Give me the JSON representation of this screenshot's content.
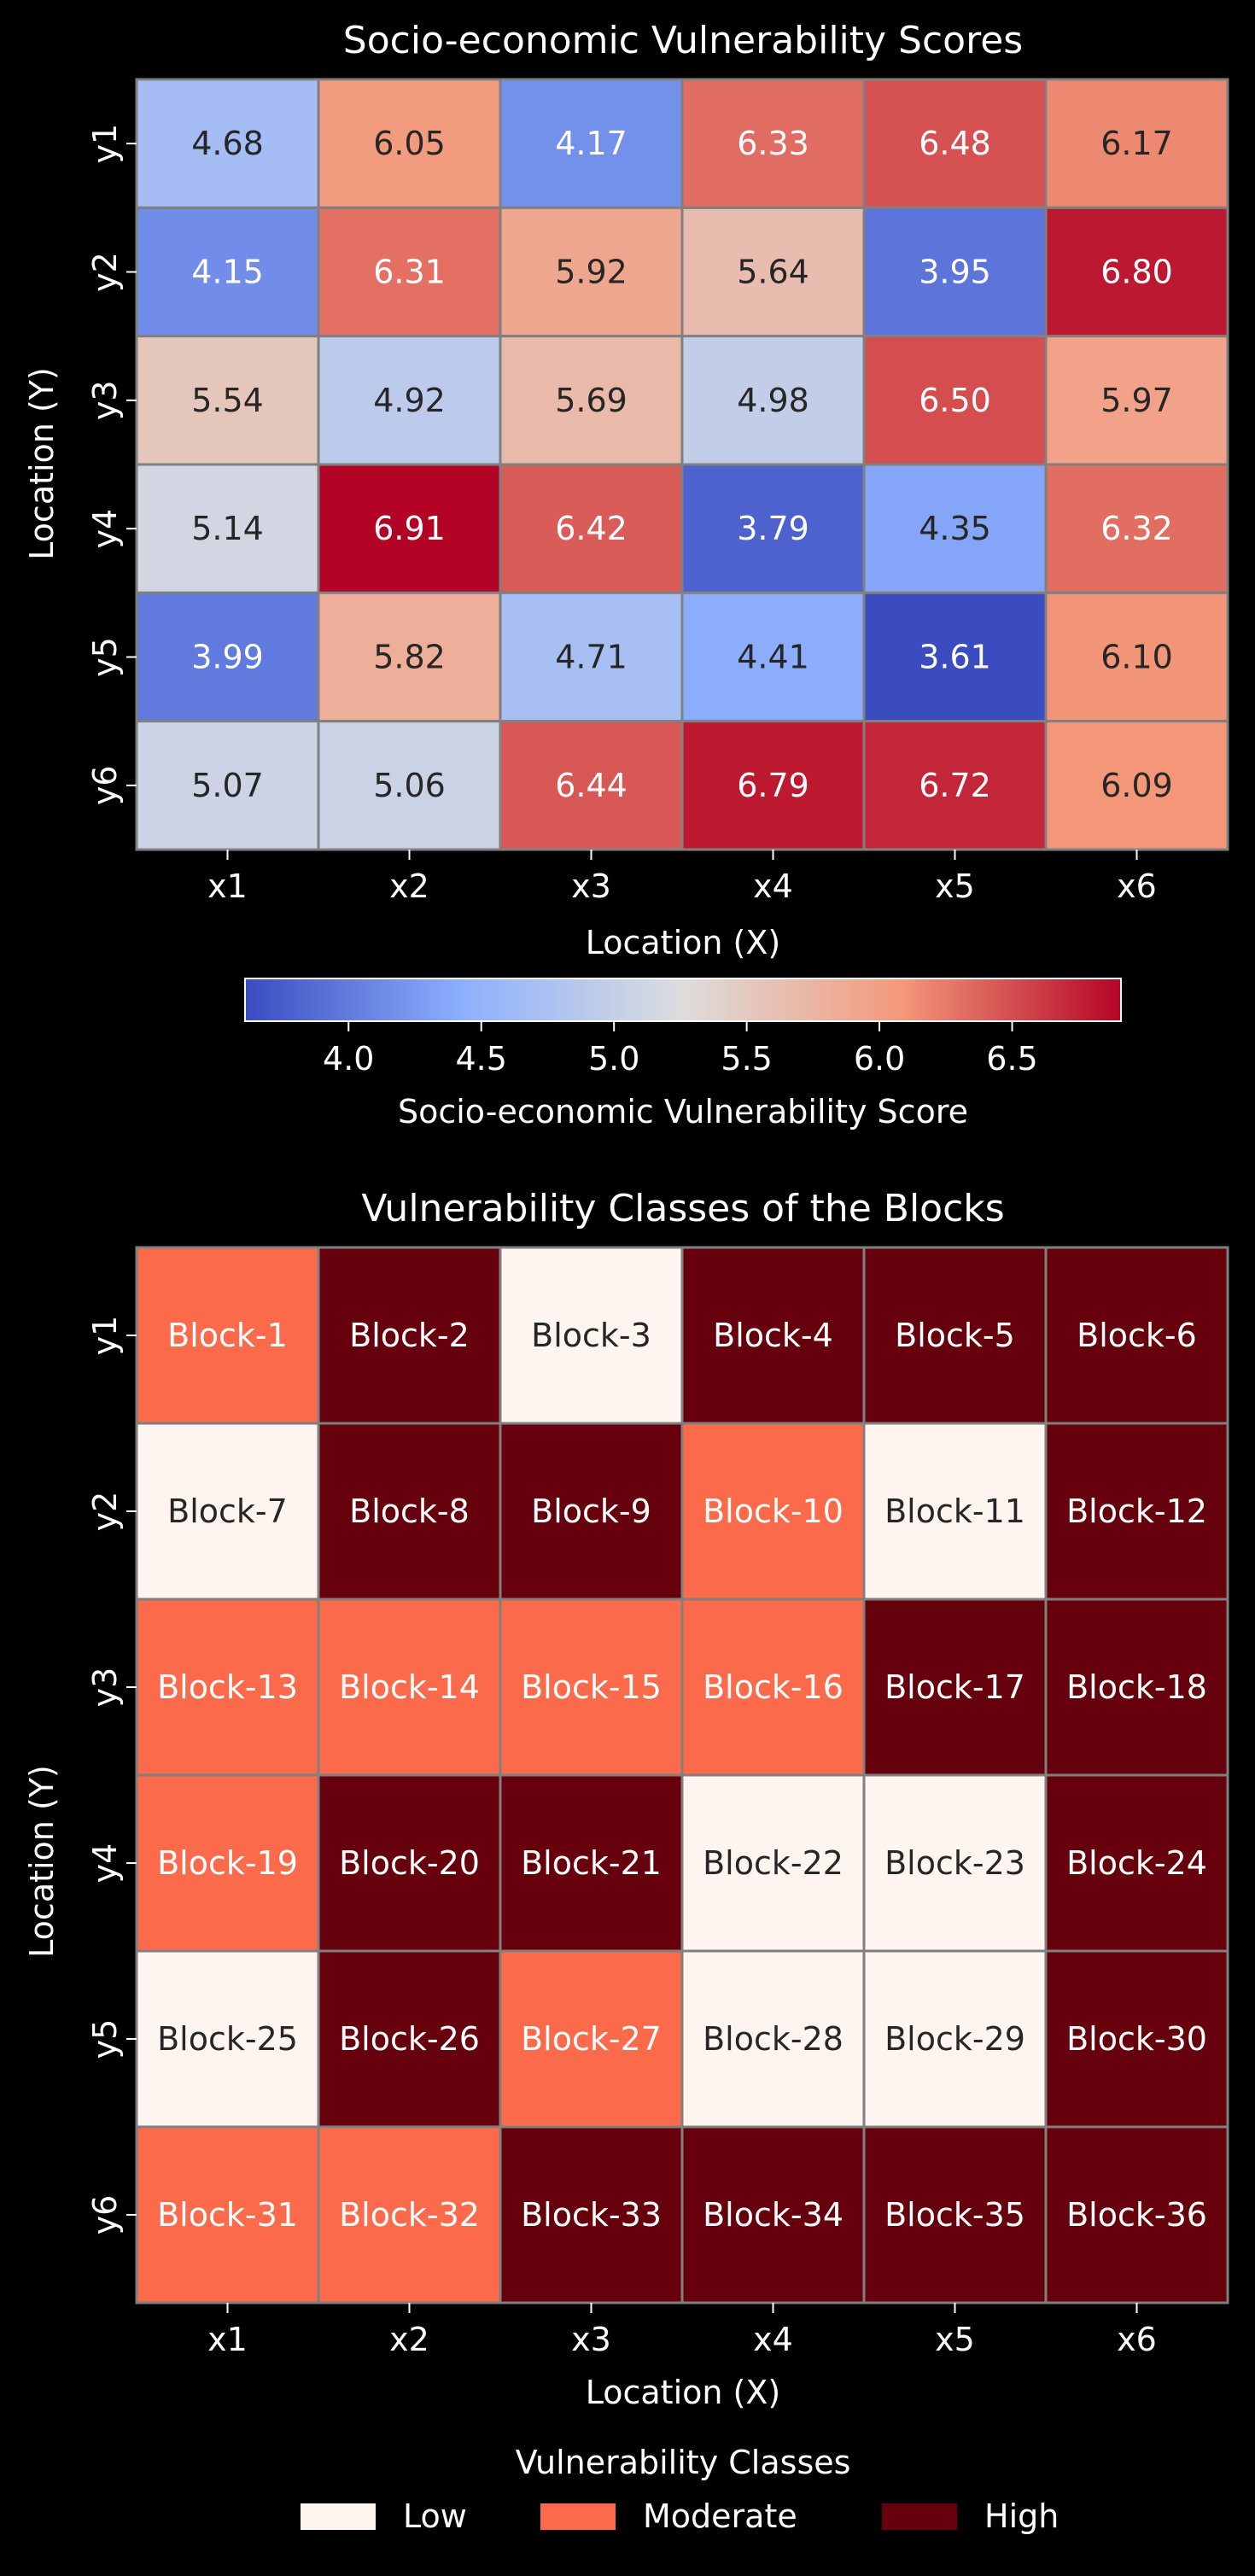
{
  "chart_data": [
    {
      "type": "heatmap",
      "title": "Socio-economic Vulnerability Scores",
      "xlabel": "Location (X)",
      "ylabel": "Location (Y)",
      "x_categories": [
        "x1",
        "x2",
        "x3",
        "x4",
        "x5",
        "x6"
      ],
      "y_categories": [
        "y1",
        "y2",
        "y3",
        "y4",
        "y5",
        "y6"
      ],
      "values": [
        [
          4.68,
          6.05,
          4.17,
          6.33,
          6.48,
          6.17
        ],
        [
          4.15,
          6.31,
          5.92,
          5.64,
          3.95,
          6.8
        ],
        [
          5.54,
          4.92,
          5.69,
          4.98,
          6.5,
          5.97
        ],
        [
          5.14,
          6.91,
          6.42,
          3.79,
          4.35,
          6.32
        ],
        [
          3.99,
          5.82,
          4.71,
          4.41,
          3.61,
          6.1
        ],
        [
          5.07,
          5.06,
          6.44,
          6.79,
          6.72,
          6.09
        ]
      ],
      "colormap": "coolwarm",
      "colorbar": {
        "label": "Socio-economic Vulnerability Score",
        "range": [
          3.61,
          6.91
        ],
        "ticks": [
          "4.0",
          "4.5",
          "5.0",
          "5.5",
          "6.0",
          "6.5"
        ],
        "placement": "bottom"
      }
    },
    {
      "type": "heatmap",
      "title": "Vulnerability Classes of the Blocks",
      "xlabel": "Location (X)",
      "ylabel": "Location (Y)",
      "x_categories": [
        "x1",
        "x2",
        "x3",
        "x4",
        "x5",
        "x6"
      ],
      "y_categories": [
        "y1",
        "y2",
        "y3",
        "y4",
        "y5",
        "y6"
      ],
      "labels": [
        [
          "Block-1",
          "Block-2",
          "Block-3",
          "Block-4",
          "Block-5",
          "Block-6"
        ],
        [
          "Block-7",
          "Block-8",
          "Block-9",
          "Block-10",
          "Block-11",
          "Block-12"
        ],
        [
          "Block-13",
          "Block-14",
          "Block-15",
          "Block-16",
          "Block-17",
          "Block-18"
        ],
        [
          "Block-19",
          "Block-20",
          "Block-21",
          "Block-22",
          "Block-23",
          "Block-24"
        ],
        [
          "Block-25",
          "Block-26",
          "Block-27",
          "Block-28",
          "Block-29",
          "Block-30"
        ],
        [
          "Block-31",
          "Block-32",
          "Block-33",
          "Block-34",
          "Block-35",
          "Block-36"
        ]
      ],
      "classes": [
        [
          "Moderate",
          "High",
          "Low",
          "High",
          "High",
          "High"
        ],
        [
          "Low",
          "High",
          "High",
          "Moderate",
          "Low",
          "High"
        ],
        [
          "Moderate",
          "Moderate",
          "Moderate",
          "Moderate",
          "High",
          "High"
        ],
        [
          "Moderate",
          "High",
          "High",
          "Low",
          "Low",
          "High"
        ],
        [
          "Low",
          "High",
          "Moderate",
          "Low",
          "Low",
          "High"
        ],
        [
          "Moderate",
          "Moderate",
          "High",
          "High",
          "High",
          "High"
        ]
      ],
      "legend": {
        "title": "Vulnerability Classes",
        "placement": "bottom-center",
        "entries": [
          {
            "label": "Low",
            "color": "#fff5f0"
          },
          {
            "label": "Moderate",
            "color": "#fb6a4a"
          },
          {
            "label": "High",
            "color": "#67000d"
          }
        ]
      }
    }
  ],
  "colors": {
    "background": "#000000",
    "text": "#ffffff",
    "cell_border": "#808080"
  }
}
